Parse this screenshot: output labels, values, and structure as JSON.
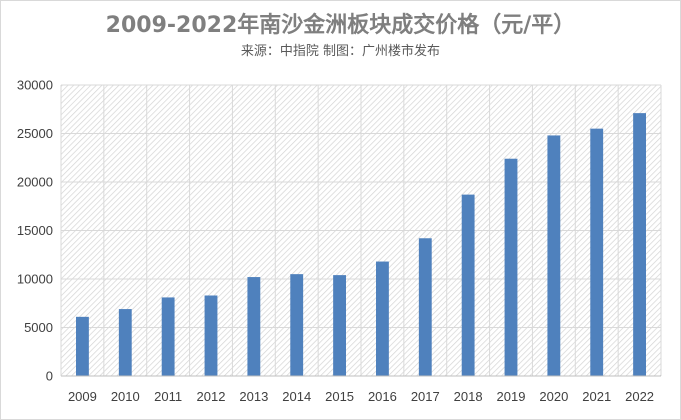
{
  "header": {
    "title": "2009-2022年南沙金洲板块成交价格（元/平）",
    "subtitle": "来源：中指院 制图：广州楼市发布"
  },
  "colors": {
    "bar": "#4f81bd",
    "grid": "#d9d9d9",
    "hatch": "#d4d4d4",
    "title": "#7f7f7f"
  },
  "chart_data": {
    "type": "bar",
    "title": "2009-2022年南沙金洲板块成交价格（元/平）",
    "subtitle": "来源：中指院 制图：广州楼市发布",
    "categories": [
      "2009",
      "2010",
      "2011",
      "2012",
      "2013",
      "2014",
      "2015",
      "2016",
      "2017",
      "2018",
      "2019",
      "2020",
      "2021",
      "2022"
    ],
    "values": [
      6100,
      6900,
      8100,
      8300,
      10200,
      10500,
      10400,
      11800,
      14200,
      18700,
      22400,
      24800,
      25500,
      27100
    ],
    "ylim": [
      0,
      30000
    ],
    "yticks": [
      "0",
      "5000",
      "10000",
      "15000",
      "20000",
      "25000",
      "30000"
    ],
    "grid": true,
    "legend": "none"
  }
}
